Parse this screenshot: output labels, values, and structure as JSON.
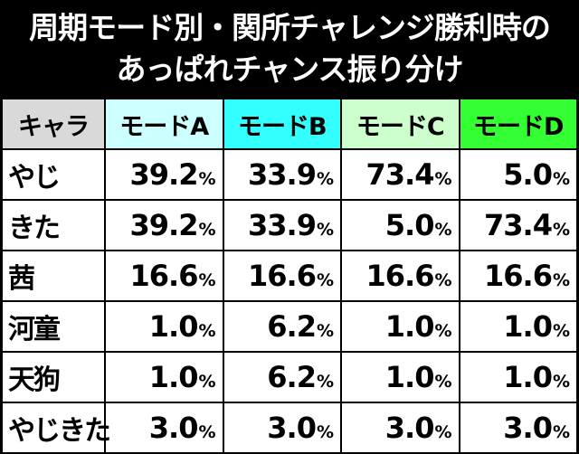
{
  "title": {
    "line1": "周期モード別・関所チャレンジ勝利時の",
    "line2": "あっぱれチャンス振り分け"
  },
  "table": {
    "columns": [
      {
        "label": "キャラ",
        "color": "#d9d9d9"
      },
      {
        "label": "モードA",
        "color": "#ccffff"
      },
      {
        "label": "モードB",
        "color": "#33ffff"
      },
      {
        "label": "モードC",
        "color": "#ccffcc"
      },
      {
        "label": "モードD",
        "color": "#33ff33"
      }
    ],
    "rows": [
      {
        "name": "やじ",
        "values": [
          "39.2",
          "33.9",
          "73.4",
          "5.0"
        ]
      },
      {
        "name": "きた",
        "values": [
          "39.2",
          "33.9",
          "5.0",
          "73.4"
        ]
      },
      {
        "name": "茜",
        "values": [
          "16.6",
          "16.6",
          "16.6",
          "16.6"
        ]
      },
      {
        "name": "河童",
        "values": [
          "1.0",
          "6.2",
          "1.0",
          "1.0"
        ]
      },
      {
        "name": "天狗",
        "values": [
          "1.0",
          "6.2",
          "1.0",
          "1.0"
        ]
      },
      {
        "name": "やじきた",
        "values": [
          "3.0",
          "3.0",
          "3.0",
          "3.0"
        ]
      }
    ],
    "unit": "%"
  }
}
